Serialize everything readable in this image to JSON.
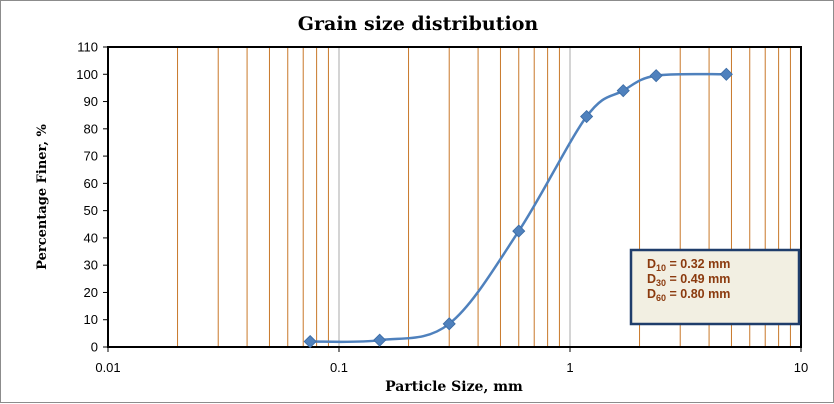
{
  "chart_data": {
    "type": "scatter",
    "title": "Grain size distribution",
    "xlabel": "Particle Size, mm",
    "ylabel": "Percentage Finer, %",
    "xscale": "log",
    "xlim": [
      0.01,
      10
    ],
    "ylim": [
      0,
      110
    ],
    "x_ticks": [
      "0.01",
      "0.1",
      "1",
      "10"
    ],
    "y_ticks": [
      "0",
      "10",
      "20",
      "30",
      "40",
      "50",
      "60",
      "70",
      "80",
      "90",
      "100",
      "110"
    ],
    "grid": "vertical",
    "line_style": "smooth",
    "series": [
      {
        "x": [
          0.075,
          0.15,
          0.3,
          0.6,
          1.18,
          1.7,
          2.36,
          4.75
        ],
        "y": [
          2,
          2.5,
          8.5,
          42.5,
          84.5,
          94,
          99.5,
          100
        ]
      }
    ],
    "annotation": {
      "lines": [
        {
          "main": "D",
          "sub": "10",
          "rest": "= 0.32 mm"
        },
        {
          "main": "D",
          "sub": "30",
          "rest": "= 0.49 mm"
        },
        {
          "main": "D",
          "sub": "60",
          "rest": "= 0.80 mm"
        }
      ]
    },
    "colors": {
      "series": "#4f81bd",
      "grid": "#c8782a",
      "annotation_text": "#8b3a0e",
      "annotation_border": "#1f3d6b",
      "annotation_fill": "#f2efe2"
    }
  }
}
